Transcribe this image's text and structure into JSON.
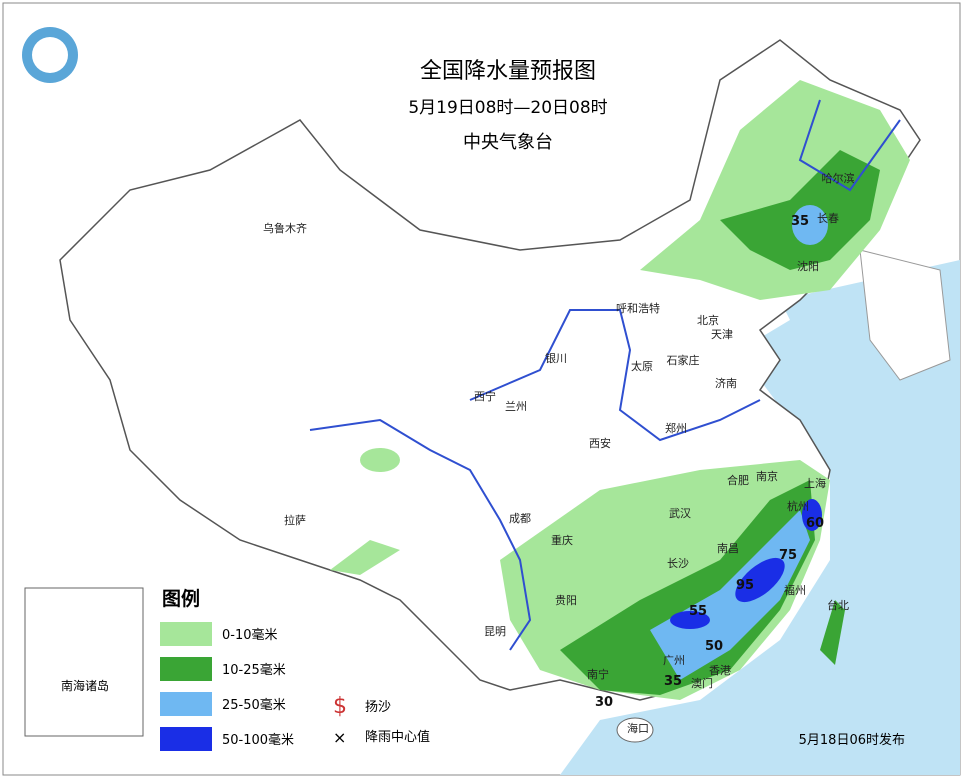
{
  "header": {
    "title": "全国降水量预报图",
    "period": "5月19日08时—20日08时",
    "issuer": "中央气象台"
  },
  "cities": [
    "乌鲁木齐",
    "哈尔滨",
    "长春",
    "沈阳",
    "呼和浩特",
    "北京",
    "天津",
    "银川",
    "石家庄",
    "太原",
    "济南",
    "西宁",
    "兰州",
    "郑州",
    "西安",
    "合肥",
    "南京",
    "上海",
    "拉萨",
    "成都",
    "武汉",
    "杭州",
    "重庆",
    "长沙",
    "南昌",
    "贵阳",
    "福州",
    "台北",
    "昆明",
    "广州",
    "香港",
    "澳门",
    "南宁",
    "海口"
  ],
  "rain_centers": [
    "35",
    "60",
    "75",
    "95",
    "55",
    "50",
    "35",
    "30"
  ],
  "legend": {
    "title": "图例",
    "items": [
      "0-10毫米",
      "10-25毫米",
      "25-50毫米",
      "50-100毫米"
    ],
    "symbols": [
      "扬沙",
      "降雨中心值"
    ]
  },
  "inset": {
    "label": "南海诸岛"
  },
  "footer": {
    "issued": "5月18日06时发布"
  }
}
